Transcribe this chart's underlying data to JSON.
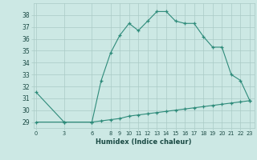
{
  "title": "",
  "xlabel": "Humidex (Indice chaleur)",
  "x_upper": [
    0,
    3,
    6,
    7,
    8,
    9,
    10,
    11,
    12,
    13,
    14,
    15,
    16,
    17,
    18,
    19,
    20,
    21,
    22,
    23
  ],
  "y_upper": [
    31.5,
    29.0,
    29.0,
    32.5,
    34.8,
    36.3,
    37.3,
    36.7,
    37.5,
    38.3,
    38.3,
    37.5,
    37.3,
    37.3,
    36.2,
    35.3,
    35.3,
    33.0,
    32.5,
    30.8
  ],
  "x_lower": [
    0,
    3,
    6,
    7,
    8,
    9,
    10,
    11,
    12,
    13,
    14,
    15,
    16,
    17,
    18,
    19,
    20,
    21,
    22,
    23
  ],
  "y_lower": [
    29.0,
    29.0,
    29.0,
    29.1,
    29.2,
    29.3,
    29.5,
    29.6,
    29.7,
    29.8,
    29.9,
    30.0,
    30.1,
    30.2,
    30.3,
    30.4,
    30.5,
    30.6,
    30.7,
    30.8
  ],
  "line_color": "#2e8b7a",
  "bg_color": "#cce8e4",
  "grid_color": "#aacbc6",
  "ylim": [
    28.5,
    39.0
  ],
  "xlim": [
    -0.3,
    23.5
  ],
  "yticks": [
    29,
    30,
    31,
    32,
    33,
    34,
    35,
    36,
    37,
    38
  ],
  "xticks": [
    0,
    3,
    6,
    8,
    9,
    10,
    11,
    12,
    13,
    14,
    15,
    16,
    17,
    18,
    19,
    20,
    21,
    22,
    23
  ]
}
